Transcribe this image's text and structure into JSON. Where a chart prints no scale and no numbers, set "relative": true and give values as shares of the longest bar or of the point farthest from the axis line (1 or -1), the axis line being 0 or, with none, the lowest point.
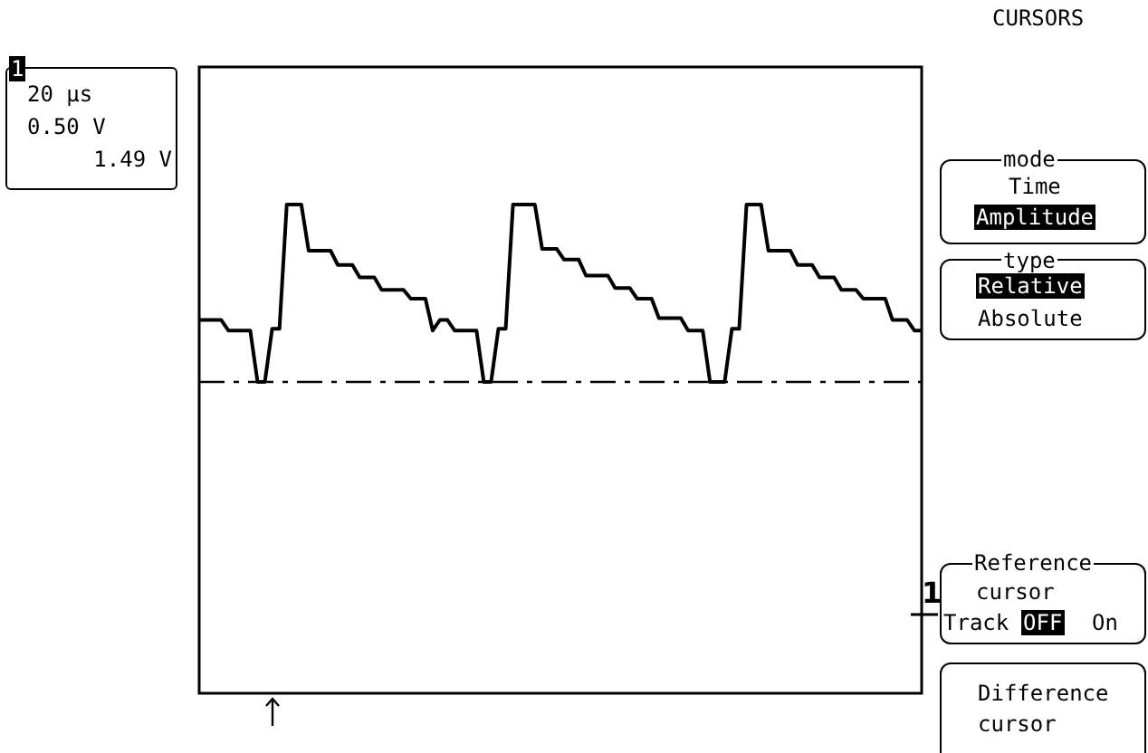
{
  "chart_data": {
    "type": "line",
    "relative": true,
    "legend": false,
    "marker": "none",
    "line_style": "solid",
    "categories": [
      null,
      null,
      null,
      null,
      null,
      null,
      null,
      null,
      null,
      null,
      null,
      null,
      null,
      null,
      null,
      null,
      null,
      null,
      null,
      null,
      null,
      null,
      null,
      null,
      null,
      null,
      null,
      null,
      null,
      null,
      null,
      null,
      null,
      null,
      null,
      null,
      null,
      null,
      null,
      null,
      null,
      null,
      null,
      null,
      null,
      null,
      null,
      null,
      null,
      null,
      null,
      null,
      null,
      null,
      null,
      null,
      null,
      null,
      null,
      null,
      null,
      null,
      null,
      null,
      null,
      null,
      null,
      null,
      null,
      null,
      null,
      null,
      null,
      null,
      null,
      null,
      null,
      null,
      null,
      null,
      null,
      null,
      null,
      null,
      null,
      null,
      null,
      null,
      null,
      null,
      null,
      null,
      null,
      null,
      null,
      null,
      null,
      null,
      null,
      null
    ],
    "series": [
      {
        "color": "#000000",
        "values": [
          0.35,
          0.35,
          0.35,
          0.35,
          0.29,
          0.29,
          0.29,
          0.29,
          0,
          0,
          0.3,
          0.3,
          1,
          1,
          1,
          0.74,
          0.74,
          0.74,
          0.74,
          0.66,
          0.66,
          0.66,
          0.59,
          0.59,
          0.59,
          0.52,
          0.52,
          0.52,
          0.52,
          0.47,
          0.47,
          0.47,
          0.29,
          0.35,
          0.35,
          0.29,
          0.29,
          0.29,
          0.29,
          0,
          0,
          0.3,
          0.3,
          1,
          1,
          1,
          1,
          0.75,
          0.75,
          0.75,
          0.69,
          0.69,
          0.69,
          0.6,
          0.6,
          0.6,
          0.6,
          0.53,
          0.53,
          0.53,
          0.47,
          0.47,
          0.47,
          0.36,
          0.36,
          0.36,
          0.36,
          0.29,
          0.29,
          0.29,
          0,
          0,
          0,
          0.3,
          0.3,
          1,
          1,
          1,
          0.74,
          0.74,
          0.74,
          0.74,
          0.66,
          0.66,
          0.66,
          0.59,
          0.59,
          0.59,
          0.52,
          0.52,
          0.52,
          0.47,
          0.47,
          0.47,
          0.47,
          0.35,
          0.35,
          0.35,
          0.29,
          0.29
        ]
      }
    ],
    "ref_lines": [
      {
        "axis": "y",
        "value": 0,
        "line_style": "dashed",
        "color": "#000000"
      }
    ],
    "annotations": [
      "CURSORS",
      "1",
      "20 µs",
      "0.50 V",
      "1.49 V",
      "mode",
      "Time",
      "Amplitude",
      "type",
      "Relative",
      "Absolute",
      "Reference",
      "cursor",
      "Track",
      "OFF",
      "On",
      "Difference",
      "cursor",
      "1"
    ]
  }
}
